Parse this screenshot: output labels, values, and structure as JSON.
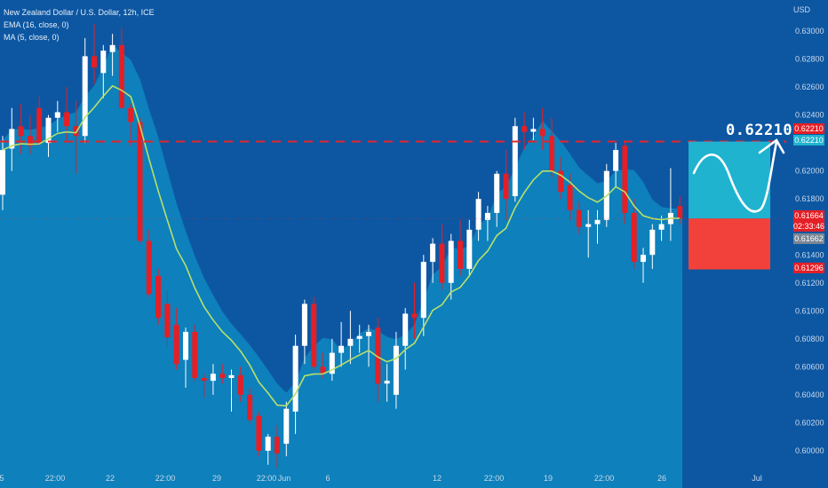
{
  "legend": {
    "title": "New Zealand Dollar / U.S. Dollar, 12h, ICE",
    "ema": "EMA (16, close, 0)",
    "ma": "MA (5, close, 0)"
  },
  "currency_label": "USD",
  "target_label": "0.62210",
  "price_tags": {
    "target_red": "0.62210",
    "target_cyan": "0.62210",
    "last_price": "0.61664",
    "countdown": "02:33:46",
    "grey_price": "0.61662",
    "stop_price": "0.61296"
  },
  "colors": {
    "background": "#0d57a2",
    "area": "#0e83bd",
    "bull": "#ffffff",
    "bear": "#e41f26",
    "ema": "#b8e06a",
    "target_line": "#e3252b",
    "tp_box": "#1fb3cf",
    "sl_box": "#f2413b"
  },
  "chart_data": {
    "type": "candlestick",
    "y_axis": {
      "range": [
        0.5985,
        0.6315
      ],
      "ticks": [
        "0.63000",
        "0.62800",
        "0.62600",
        "0.62400",
        "0.62200",
        "0.62000",
        "0.61800",
        "0.61600",
        "0.61400",
        "0.61200",
        "0.61000",
        "0.60800",
        "0.60600",
        "0.60400",
        "0.60200",
        "0.60000"
      ]
    },
    "x_axis": {
      "labels": [
        "5",
        "22:00",
        "22",
        "22:00",
        "29",
        "22:00",
        "Jun",
        "6",
        "12",
        "22:00",
        "19",
        "22:00",
        "26",
        "Jul"
      ]
    },
    "target_level": 0.6221,
    "target_line_style": "dashed",
    "candles": [
      {
        "o": 0.6183,
        "h": 0.6225,
        "l": 0.6172,
        "c": 0.6215
      },
      {
        "o": 0.6216,
        "h": 0.6245,
        "l": 0.62,
        "c": 0.623
      },
      {
        "o": 0.6232,
        "h": 0.6248,
        "l": 0.6212,
        "c": 0.6225
      },
      {
        "o": 0.6225,
        "h": 0.624,
        "l": 0.6212,
        "c": 0.6218
      },
      {
        "o": 0.6245,
        "h": 0.6253,
        "l": 0.6218,
        "c": 0.622
      },
      {
        "o": 0.622,
        "h": 0.624,
        "l": 0.621,
        "c": 0.6238
      },
      {
        "o": 0.6238,
        "h": 0.625,
        "l": 0.6228,
        "c": 0.6242
      },
      {
        "o": 0.6242,
        "h": 0.626,
        "l": 0.6222,
        "c": 0.6232
      },
      {
        "o": 0.6232,
        "h": 0.625,
        "l": 0.6198,
        "c": 0.6225
      },
      {
        "o": 0.6225,
        "h": 0.6295,
        "l": 0.622,
        "c": 0.6282
      },
      {
        "o": 0.6282,
        "h": 0.6305,
        "l": 0.6262,
        "c": 0.6274
      },
      {
        "o": 0.627,
        "h": 0.629,
        "l": 0.6252,
        "c": 0.6286
      },
      {
        "o": 0.6285,
        "h": 0.6298,
        "l": 0.6268,
        "c": 0.629
      },
      {
        "o": 0.629,
        "h": 0.6302,
        "l": 0.6245,
        "c": 0.6245
      },
      {
        "o": 0.6245,
        "h": 0.6248,
        "l": 0.6218,
        "c": 0.6235
      },
      {
        "o": 0.6235,
        "h": 0.6238,
        "l": 0.6148,
        "c": 0.615
      },
      {
        "o": 0.615,
        "h": 0.6158,
        "l": 0.611,
        "c": 0.6112
      },
      {
        "o": 0.6125,
        "h": 0.613,
        "l": 0.609,
        "c": 0.6095
      },
      {
        "o": 0.6105,
        "h": 0.6115,
        "l": 0.6075,
        "c": 0.6081
      },
      {
        "o": 0.609,
        "h": 0.6102,
        "l": 0.6058,
        "c": 0.6062
      },
      {
        "o": 0.6065,
        "h": 0.6088,
        "l": 0.6045,
        "c": 0.6085
      },
      {
        "o": 0.6085,
        "h": 0.609,
        "l": 0.605,
        "c": 0.6052
      },
      {
        "o": 0.6052,
        "h": 0.6055,
        "l": 0.6038,
        "c": 0.605
      },
      {
        "o": 0.605,
        "h": 0.6062,
        "l": 0.604,
        "c": 0.6055
      },
      {
        "o": 0.6055,
        "h": 0.6062,
        "l": 0.6048,
        "c": 0.6052
      },
      {
        "o": 0.6052,
        "h": 0.6058,
        "l": 0.6028,
        "c": 0.6054
      },
      {
        "o": 0.6054,
        "h": 0.606,
        "l": 0.6035,
        "c": 0.604
      },
      {
        "o": 0.604,
        "h": 0.6045,
        "l": 0.602,
        "c": 0.6022
      },
      {
        "o": 0.6025,
        "h": 0.6028,
        "l": 0.5996,
        "c": 0.6
      },
      {
        "o": 0.6,
        "h": 0.6012,
        "l": 0.599,
        "c": 0.601
      },
      {
        "o": 0.601,
        "h": 0.6018,
        "l": 0.5988,
        "c": 0.5998
      },
      {
        "o": 0.6005,
        "h": 0.6035,
        "l": 0.5996,
        "c": 0.603
      },
      {
        "o": 0.6028,
        "h": 0.6083,
        "l": 0.6012,
        "c": 0.6075
      },
      {
        "o": 0.6075,
        "h": 0.6108,
        "l": 0.6062,
        "c": 0.6105
      },
      {
        "o": 0.6105,
        "h": 0.611,
        "l": 0.6058,
        "c": 0.606
      },
      {
        "o": 0.606,
        "h": 0.607,
        "l": 0.6052,
        "c": 0.6055
      },
      {
        "o": 0.6055,
        "h": 0.608,
        "l": 0.605,
        "c": 0.607
      },
      {
        "o": 0.607,
        "h": 0.6092,
        "l": 0.606,
        "c": 0.6075
      },
      {
        "o": 0.6075,
        "h": 0.61,
        "l": 0.6062,
        "c": 0.608
      },
      {
        "o": 0.608,
        "h": 0.609,
        "l": 0.607,
        "c": 0.6082
      },
      {
        "o": 0.6082,
        "h": 0.609,
        "l": 0.606,
        "c": 0.6085
      },
      {
        "o": 0.6088,
        "h": 0.6095,
        "l": 0.6035,
        "c": 0.6048
      },
      {
        "o": 0.6048,
        "h": 0.6062,
        "l": 0.6035,
        "c": 0.605
      },
      {
        "o": 0.604,
        "h": 0.6085,
        "l": 0.603,
        "c": 0.6075
      },
      {
        "o": 0.6075,
        "h": 0.6102,
        "l": 0.6058,
        "c": 0.6098
      },
      {
        "o": 0.6098,
        "h": 0.612,
        "l": 0.608,
        "c": 0.6095
      },
      {
        "o": 0.6095,
        "h": 0.614,
        "l": 0.6082,
        "c": 0.6135
      },
      {
        "o": 0.6135,
        "h": 0.6152,
        "l": 0.612,
        "c": 0.6148
      },
      {
        "o": 0.6148,
        "h": 0.6162,
        "l": 0.6115,
        "c": 0.612
      },
      {
        "o": 0.612,
        "h": 0.6155,
        "l": 0.6108,
        "c": 0.615
      },
      {
        "o": 0.615,
        "h": 0.6165,
        "l": 0.6125,
        "c": 0.613
      },
      {
        "o": 0.613,
        "h": 0.6165,
        "l": 0.6125,
        "c": 0.6158
      },
      {
        "o": 0.6158,
        "h": 0.6185,
        "l": 0.615,
        "c": 0.618
      },
      {
        "o": 0.6165,
        "h": 0.6175,
        "l": 0.615,
        "c": 0.617
      },
      {
        "o": 0.617,
        "h": 0.62,
        "l": 0.616,
        "c": 0.6198
      },
      {
        "o": 0.6198,
        "h": 0.6215,
        "l": 0.6165,
        "c": 0.618
      },
      {
        "o": 0.6182,
        "h": 0.6238,
        "l": 0.6178,
        "c": 0.6232
      },
      {
        "o": 0.6232,
        "h": 0.6242,
        "l": 0.6215,
        "c": 0.6228
      },
      {
        "o": 0.6228,
        "h": 0.6238,
        "l": 0.6222,
        "c": 0.623
      },
      {
        "o": 0.623,
        "h": 0.6245,
        "l": 0.6215,
        "c": 0.6225
      },
      {
        "o": 0.6225,
        "h": 0.6238,
        "l": 0.6195,
        "c": 0.62
      },
      {
        "o": 0.62,
        "h": 0.621,
        "l": 0.618,
        "c": 0.6185
      },
      {
        "o": 0.619,
        "h": 0.6198,
        "l": 0.6165,
        "c": 0.6172
      },
      {
        "o": 0.6172,
        "h": 0.6178,
        "l": 0.6155,
        "c": 0.616
      },
      {
        "o": 0.616,
        "h": 0.6172,
        "l": 0.6138,
        "c": 0.6162
      },
      {
        "o": 0.6162,
        "h": 0.6172,
        "l": 0.6148,
        "c": 0.6165
      },
      {
        "o": 0.6165,
        "h": 0.6205,
        "l": 0.616,
        "c": 0.62
      },
      {
        "o": 0.62,
        "h": 0.622,
        "l": 0.6188,
        "c": 0.6215
      },
      {
        "o": 0.6218,
        "h": 0.6222,
        "l": 0.6162,
        "c": 0.617
      },
      {
        "o": 0.617,
        "h": 0.618,
        "l": 0.613,
        "c": 0.6135
      },
      {
        "o": 0.6135,
        "h": 0.6145,
        "l": 0.612,
        "c": 0.614
      },
      {
        "o": 0.614,
        "h": 0.6162,
        "l": 0.613,
        "c": 0.6158
      },
      {
        "o": 0.6158,
        "h": 0.6168,
        "l": 0.615,
        "c": 0.6162
      },
      {
        "o": 0.6162,
        "h": 0.6202,
        "l": 0.615,
        "c": 0.617
      },
      {
        "o": 0.6175,
        "h": 0.6182,
        "l": 0.6162,
        "c": 0.6166
      }
    ]
  }
}
